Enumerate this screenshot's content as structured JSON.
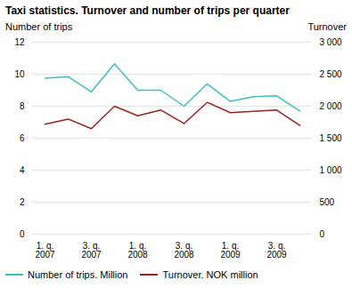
{
  "chart_data": {
    "type": "line",
    "title": "Taxi statistics. Turnover and number of trips per quarter",
    "ylabel": "Number of trips",
    "y2label": "Turnover",
    "categories": [
      "1. q.\n2007",
      null,
      "3. q.\n2007",
      null,
      "1. q.\n2008",
      null,
      "3. q.\n2008",
      null,
      "1. q.\n2009",
      null,
      "3. q.\n2009",
      null
    ],
    "series": [
      {
        "name": "Number of trips. Million",
        "color": "#3DBFBF",
        "axis": "y",
        "values": [
          9.75,
          9.85,
          8.9,
          10.65,
          9.0,
          9.0,
          8.0,
          9.4,
          8.3,
          8.6,
          8.65,
          7.7
        ]
      },
      {
        "name": "Turnover. NOK million",
        "color": "#9B2020",
        "axis": "y2",
        "values": [
          1720,
          1800,
          1650,
          2000,
          1850,
          1940,
          1730,
          2060,
          1900,
          1920,
          1940,
          1700
        ]
      }
    ],
    "ylim": [
      0,
      12
    ],
    "yticks": [
      0,
      2,
      4,
      6,
      8,
      10,
      12
    ],
    "y2lim": [
      0,
      3000
    ],
    "y2ticks": [
      0,
      500,
      {
        "value": 1000,
        "label": "1 000"
      },
      {
        "value": 1500,
        "label": "1 500"
      },
      {
        "value": 2000,
        "label": "2 000"
      },
      {
        "value": 2500,
        "label": "2 500"
      },
      {
        "value": 3000,
        "label": "3 000"
      }
    ],
    "grid": true,
    "legend": "bottom"
  }
}
